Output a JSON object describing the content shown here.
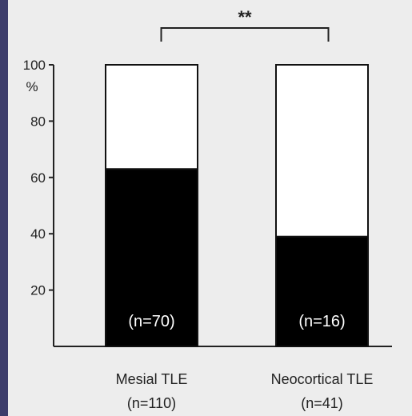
{
  "chart_data": {
    "type": "bar",
    "stacked": true,
    "title": "",
    "xlabel": "",
    "ylabel": "",
    "ylim": [
      0,
      100
    ],
    "y_ticks": [
      20,
      40,
      60,
      80,
      100
    ],
    "y_unit_label": "%",
    "categories": [
      {
        "name": "Mesial TLE",
        "n": "(n=110)"
      },
      {
        "name": "Neocortical TLE",
        "n": "(n=41)"
      }
    ],
    "series": [
      {
        "values": [
          63,
          39
        ],
        "color": "#000000",
        "labels": [
          "(n=70)",
          "(n=16)"
        ]
      },
      {
        "values": [
          37,
          61
        ],
        "color": "#ffffff"
      }
    ],
    "significance": {
      "between": [
        0,
        1
      ],
      "label": "**"
    },
    "grid": false,
    "legend": "none"
  }
}
